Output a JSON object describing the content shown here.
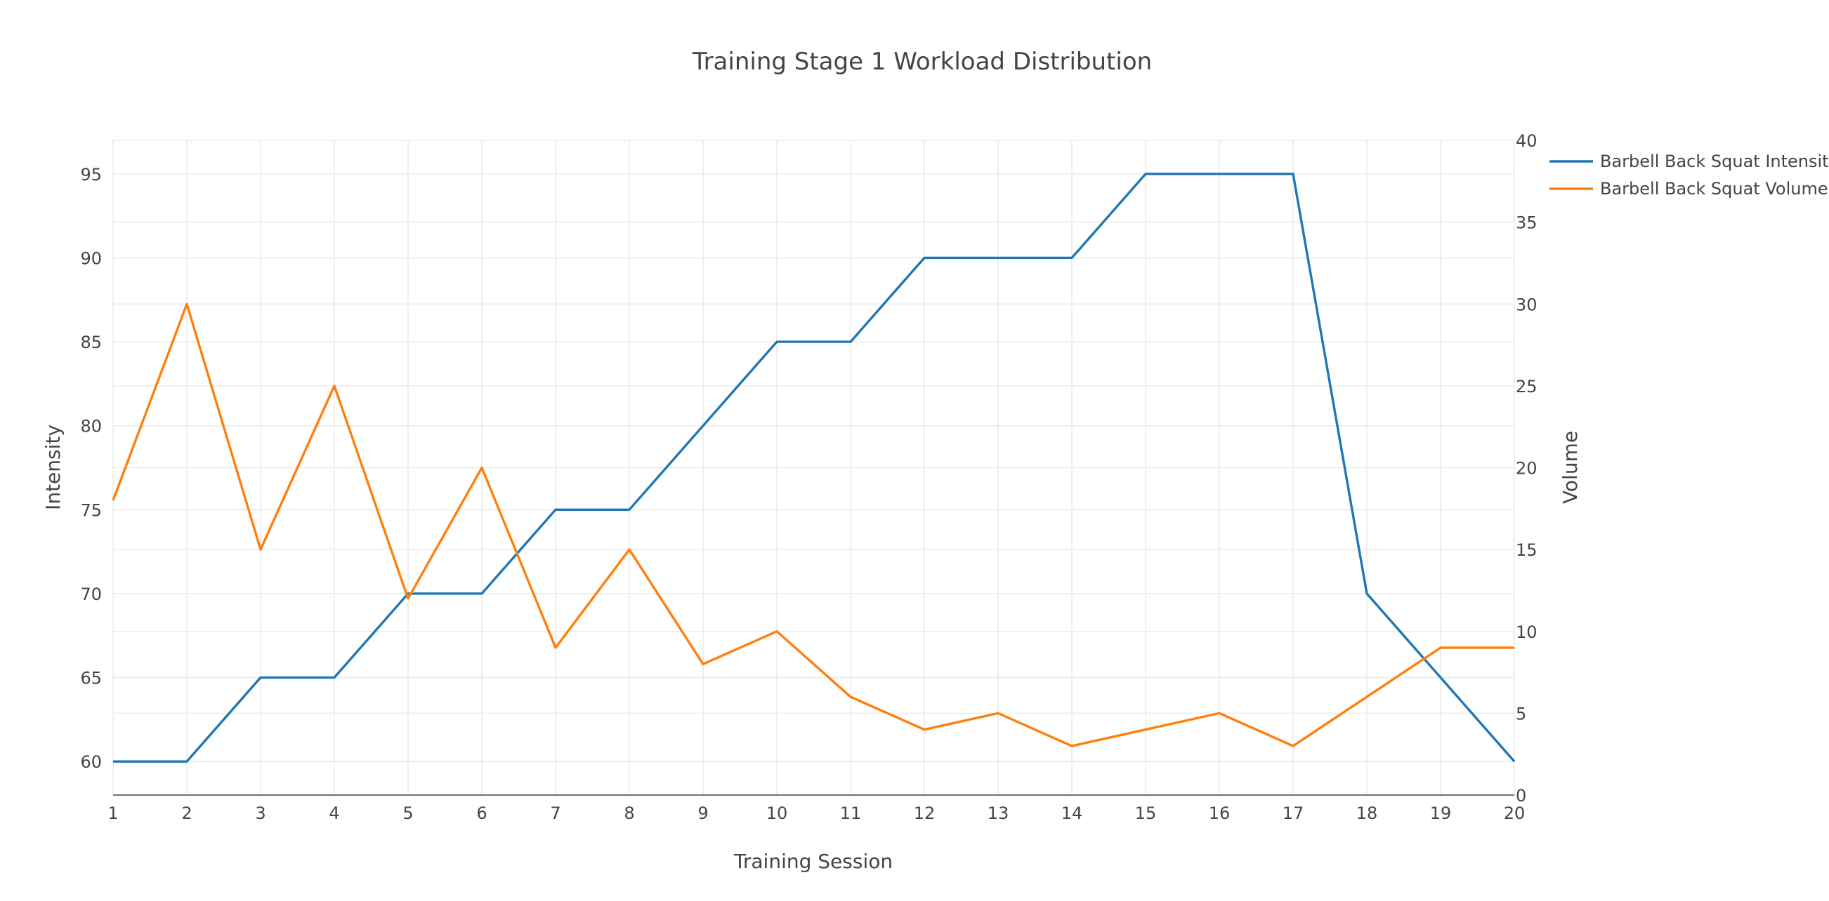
{
  "chart_data": {
    "type": "line",
    "title": "Training Stage 1 Workload Distribution",
    "xlabel": "Training Session",
    "ylabel": "Intensity",
    "y2label": "Volume",
    "x": [
      1,
      2,
      3,
      4,
      5,
      6,
      7,
      8,
      9,
      10,
      11,
      12,
      13,
      14,
      15,
      16,
      17,
      18,
      19,
      20
    ],
    "xlim": [
      1,
      20
    ],
    "ylim": [
      58,
      97
    ],
    "y2lim": [
      0,
      40
    ],
    "yticks": [
      60,
      65,
      70,
      75,
      80,
      85,
      90,
      95
    ],
    "y2ticks": [
      0,
      5,
      10,
      15,
      20,
      25,
      30,
      35,
      40
    ],
    "grid": true,
    "legend_position": "top-right",
    "series": [
      {
        "name": "Barbell Back Squat Intensity",
        "axis": "y",
        "color": "#1f77b4",
        "values": [
          60,
          60,
          65,
          65,
          70,
          70,
          75,
          75,
          80,
          85,
          85,
          90,
          90,
          90,
          95,
          95,
          95,
          70,
          65,
          60
        ]
      },
      {
        "name": "Barbell Back Squat Volume",
        "axis": "y2",
        "color": "#ff7f0e",
        "values": [
          18,
          30,
          15,
          25,
          12,
          20,
          9,
          15,
          8,
          10,
          6,
          4,
          5,
          3,
          4,
          5,
          3,
          6,
          9,
          9
        ]
      }
    ]
  }
}
